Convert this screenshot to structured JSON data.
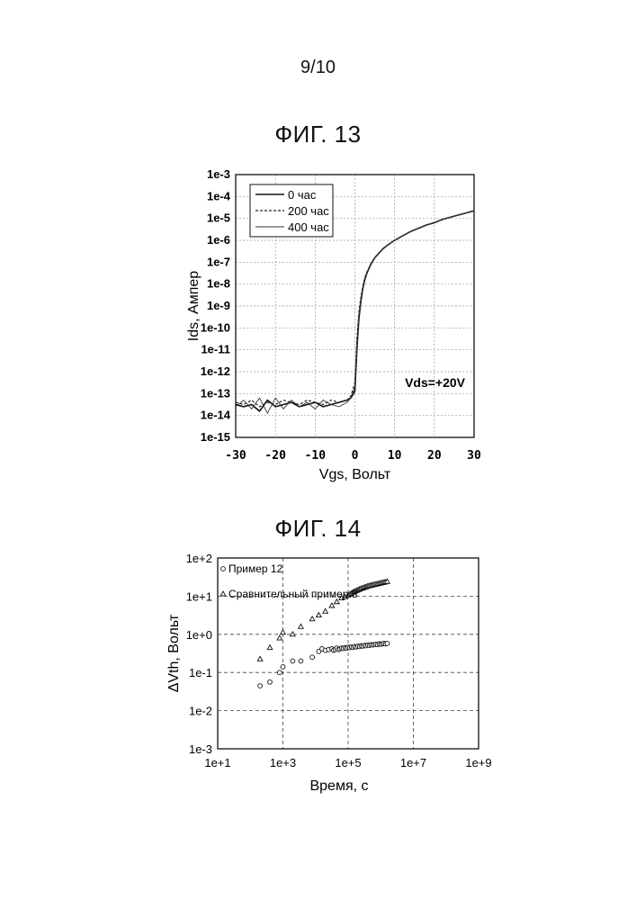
{
  "page": {
    "number": "9/10"
  },
  "chart_data": [
    {
      "type": "line",
      "title": "ФИГ. 13",
      "xlabel": "Vgs, Вольт",
      "ylabel": "Ids, Ампер",
      "xlim": [
        -30,
        30
      ],
      "ylim_exp": [
        -15,
        -3
      ],
      "log_y": true,
      "grid": true,
      "legend_placement": "top-left",
      "x_ticks": [
        "-30",
        "-20",
        "-10",
        "0",
        "10",
        "20",
        "30"
      ],
      "y_ticks": [
        "1e-3",
        "1e-4",
        "1e-5",
        "1e-6",
        "1e-7",
        "1e-8",
        "1e-9",
        "1e-10",
        "1e-11",
        "1e-12",
        "1e-13",
        "1e-14",
        "1e-15"
      ],
      "annotation": "Vds=+20V",
      "series": [
        {
          "name": "0 час",
          "style": "solid",
          "x": [
            -30,
            -28,
            -26,
            -24,
            -22,
            -20,
            -18,
            -16,
            -14,
            -12,
            -10,
            -8,
            -6,
            -4,
            -2,
            -1,
            0,
            0.5,
            1,
            1.5,
            2,
            2.5,
            3,
            4,
            5,
            6,
            7,
            8,
            10,
            12,
            14,
            16,
            18,
            20,
            22,
            24,
            26,
            28,
            30
          ],
          "log10_y": [
            -13.5,
            -13.6,
            -13.5,
            -13.8,
            -13.3,
            -13.6,
            -13.5,
            -13.4,
            -13.6,
            -13.5,
            -13.4,
            -13.6,
            -13.5,
            -13.4,
            -13.3,
            -13.2,
            -12.9,
            -11,
            -9.6,
            -8.8,
            -8.2,
            -7.8,
            -7.5,
            -7.1,
            -6.8,
            -6.6,
            -6.4,
            -6.25,
            -6.0,
            -5.8,
            -5.6,
            -5.45,
            -5.3,
            -5.2,
            -5.05,
            -4.95,
            -4.85,
            -4.75,
            -4.65
          ]
        },
        {
          "name": "200 час",
          "style": "dashed",
          "x": [
            -30,
            -28,
            -26,
            -24,
            -22,
            -20,
            -18,
            -16,
            -14,
            -12,
            -10,
            -8,
            -6,
            -4,
            -2,
            -1,
            0,
            0.5,
            1,
            1.5,
            2,
            2.5,
            3,
            4,
            5,
            6,
            7,
            8,
            10,
            12,
            14,
            16,
            18,
            20,
            22,
            24,
            26,
            28,
            30
          ],
          "log10_y": [
            -13.4,
            -13.5,
            -13.3,
            -13.6,
            -13.4,
            -13.5,
            -13.3,
            -13.4,
            -13.5,
            -13.3,
            -13.4,
            -13.5,
            -13.3,
            -13.4,
            -13.3,
            -13.1,
            -12.5,
            -10.5,
            -9.3,
            -8.6,
            -8.1,
            -7.7,
            -7.45,
            -7.08,
            -6.78,
            -6.58,
            -6.4,
            -6.25,
            -6.0,
            -5.8,
            -5.6,
            -5.45,
            -5.3,
            -5.2,
            -5.05,
            -4.95,
            -4.85,
            -4.75,
            -4.65
          ]
        },
        {
          "name": "400 час",
          "style": "thin",
          "x": [
            -30,
            -28,
            -26,
            -24,
            -22,
            -20,
            -18,
            -16,
            -14,
            -12,
            -10,
            -8,
            -6,
            -4,
            -2,
            -1,
            0,
            0.5,
            1,
            1.5,
            2,
            2.5,
            3,
            4,
            5,
            6,
            7,
            8,
            10,
            12,
            14,
            16,
            18,
            20,
            22,
            24,
            26,
            28,
            30
          ],
          "log10_y": [
            -13.6,
            -13.3,
            -13.7,
            -13.2,
            -13.9,
            -13.2,
            -13.7,
            -13.3,
            -13.6,
            -13.4,
            -13.7,
            -13.3,
            -13.5,
            -13.6,
            -13.4,
            -13.2,
            -12.7,
            -10.8,
            -9.5,
            -8.7,
            -8.15,
            -7.75,
            -7.48,
            -7.09,
            -6.79,
            -6.59,
            -6.4,
            -6.25,
            -6.0,
            -5.8,
            -5.6,
            -5.45,
            -5.3,
            -5.2,
            -5.05,
            -4.95,
            -4.85,
            -4.75,
            -4.65
          ]
        }
      ]
    },
    {
      "type": "scatter",
      "title": "ФИГ. 14",
      "xlabel": "Время, с",
      "ylabel": "ΔVth, Вольт",
      "log_x": true,
      "log_y": true,
      "xlim_exp": [
        1,
        9
      ],
      "ylim_exp": [
        -3,
        2
      ],
      "grid": true,
      "legend_placement": "top-left",
      "x_ticks": [
        "1e+1",
        "1e+3",
        "1e+5",
        "1e+7",
        "1e+9"
      ],
      "y_ticks": [
        "1e+2",
        "1e+1",
        "1e+0",
        "1e-1",
        "1e-2",
        "1e-3"
      ],
      "series": [
        {
          "name": "Пример 12",
          "marker": "circle",
          "log10_x": [
            2.3,
            2.6,
            2.9,
            3.0,
            3.3,
            3.55,
            3.9,
            4.1,
            4.2,
            4.3,
            4.4,
            4.5,
            4.55,
            4.6,
            4.65,
            4.7,
            4.75,
            4.8,
            4.85,
            4.9,
            4.95,
            5.0,
            5.05,
            5.1,
            5.15,
            5.2,
            5.25,
            5.3,
            5.35,
            5.4,
            5.45,
            5.5,
            5.55,
            5.6,
            5.65,
            5.7,
            5.75,
            5.8,
            5.85,
            5.9,
            5.95,
            6.0,
            6.05,
            6.1,
            6.15,
            6.2
          ],
          "log10_y": [
            -1.35,
            -1.25,
            -1.0,
            -0.85,
            -0.7,
            -0.7,
            -0.6,
            -0.45,
            -0.38,
            -0.42,
            -0.4,
            -0.38,
            -0.42,
            -0.4,
            -0.36,
            -0.4,
            -0.38,
            -0.36,
            -0.37,
            -0.35,
            -0.36,
            -0.34,
            -0.35,
            -0.33,
            -0.34,
            -0.32,
            -0.33,
            -0.31,
            -0.32,
            -0.3,
            -0.31,
            -0.29,
            -0.3,
            -0.28,
            -0.29,
            -0.27,
            -0.28,
            -0.27,
            -0.26,
            -0.27,
            -0.25,
            -0.26,
            -0.25,
            -0.24,
            -0.25,
            -0.24
          ]
        },
        {
          "name": "Сравнительный пример 8",
          "marker": "triangle",
          "log10_x": [
            2.3,
            2.6,
            2.9,
            3.0,
            3.3,
            3.55,
            3.9,
            4.1,
            4.3,
            4.5,
            4.65,
            4.8,
            4.9,
            5.0,
            5.05,
            5.1,
            5.15,
            5.2,
            5.25,
            5.3,
            5.35,
            5.4,
            5.45,
            5.5,
            5.55,
            5.6,
            5.65,
            5.7,
            5.75,
            5.8,
            5.85,
            5.9,
            5.95,
            6.0,
            6.05,
            6.1,
            6.15,
            6.2
          ],
          "log10_y": [
            -0.65,
            -0.35,
            -0.1,
            0.05,
            0.0,
            0.2,
            0.4,
            0.5,
            0.6,
            0.75,
            0.85,
            0.95,
            0.98,
            1.02,
            1.05,
            1.07,
            1.1,
            1.12,
            1.14,
            1.16,
            1.18,
            1.2,
            1.21,
            1.23,
            1.24,
            1.26,
            1.27,
            1.28,
            1.29,
            1.3,
            1.31,
            1.32,
            1.33,
            1.34,
            1.35,
            1.36,
            1.37,
            1.38
          ]
        }
      ]
    }
  ]
}
